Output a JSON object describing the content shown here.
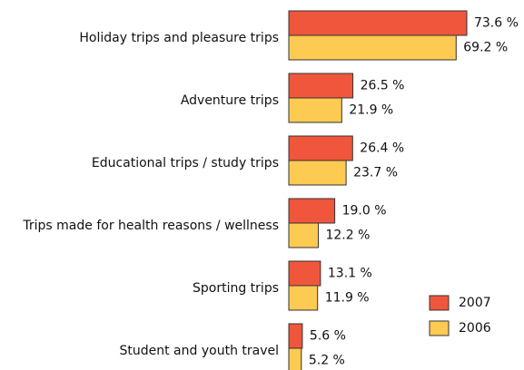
{
  "chart_data": {
    "type": "bar",
    "orientation": "horizontal",
    "categories": [
      "Holiday trips and pleasure trips",
      "Adventure trips",
      "Educational trips / study trips",
      "Trips made for health reasons / wellness",
      "Sporting trips",
      "Student and youth travel"
    ],
    "series": [
      {
        "name": "2007",
        "color": "#ef563c",
        "values": [
          73.6,
          26.5,
          26.4,
          19.0,
          13.1,
          5.6
        ],
        "value_labels": [
          "73.6 %",
          "26.5 %",
          "26.4 %",
          "19.0 %",
          "13.1 %",
          "5.6 %"
        ]
      },
      {
        "name": "2006",
        "color": "#fdca52",
        "values": [
          69.2,
          21.9,
          23.7,
          12.2,
          11.9,
          5.2
        ],
        "value_labels": [
          "69.2 %",
          "21.9 %",
          "23.7 %",
          "12.2 %",
          "11.9 %",
          "5.2 %"
        ]
      }
    ],
    "legend": "bottom-right"
  }
}
